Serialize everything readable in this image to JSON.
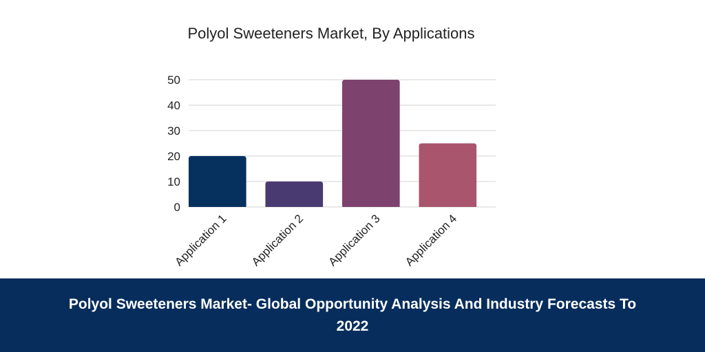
{
  "chart_data": {
    "type": "bar",
    "title": "Polyol Sweeteners Market, By Applications",
    "categories": [
      "Application 1",
      "Application 2",
      "Application 3",
      "Application 4"
    ],
    "values": [
      20,
      10,
      50,
      25
    ],
    "bar_colors": [
      "#06305e",
      "#4a3a72",
      "#7e426e",
      "#a8556d"
    ],
    "y_ticks": [
      0,
      10,
      20,
      30,
      40,
      50
    ],
    "ylim": [
      0,
      50
    ],
    "grid": true,
    "legend": "none"
  },
  "footer": {
    "text": "Polyol Sweeteners Market- Global Opportunity Analysis And Industry Forecasts To 2022",
    "background": "#062d5c"
  }
}
